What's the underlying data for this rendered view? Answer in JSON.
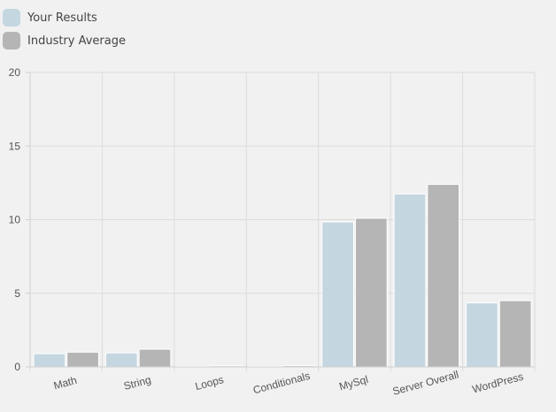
{
  "chart_data": {
    "type": "bar",
    "categories": [
      "Math",
      "String",
      "Loops",
      "Conditionals",
      "MySql",
      "Server Overall",
      "WordPress"
    ],
    "series": [
      {
        "name": "Your Results",
        "color": "#c4d7e1",
        "values": [
          0.9,
          0.95,
          0.05,
          0.05,
          9.85,
          11.75,
          4.35
        ]
      },
      {
        "name": "Industry Average",
        "color": "#b5b5b5",
        "values": [
          1.0,
          1.2,
          0.07,
          0.08,
          10.1,
          12.4,
          4.5
        ]
      }
    ],
    "yticks": [
      "0",
      "5",
      "10",
      "15",
      "20"
    ],
    "ylim": [
      0,
      20
    ],
    "grid": true,
    "legend_position": "top-left",
    "title": "",
    "xlabel": "",
    "ylabel": ""
  }
}
